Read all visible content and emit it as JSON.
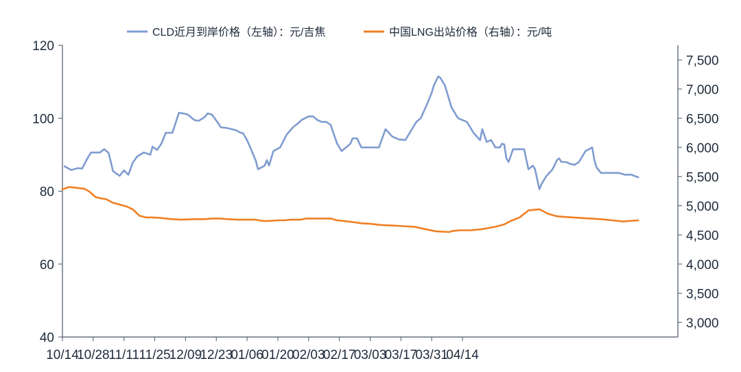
{
  "chart_data": {
    "type": "line",
    "legend_position": "top",
    "grid": false,
    "x_tick_labels": [
      "10/14",
      "10/28",
      "11/11",
      "11/25",
      "12/09",
      "12/23",
      "01/06",
      "01/20",
      "02/03",
      "02/17",
      "03/03",
      "03/17",
      "03/31",
      "04/14"
    ],
    "y_left": {
      "lim": [
        40,
        120
      ],
      "ticks": [
        "40",
        "60",
        "80",
        "100",
        "120"
      ]
    },
    "y_right": {
      "lim": [
        2750,
        7750
      ],
      "ticks": [
        "3,000",
        "3,500",
        "4,000",
        "4,500",
        "5,000",
        "5,500",
        "6,000",
        "6,500",
        "7,000",
        "7,500"
      ]
    },
    "colors": {
      "cld": "#7f9bd0",
      "lng": "#f07f23",
      "axis": "#4a5566"
    },
    "series": [
      {
        "name": "CLD近月到岸价格（左轴）：元/吉焦",
        "axis": "left",
        "x_days": [
          1,
          4,
          7,
          9,
          11,
          13,
          15,
          17,
          19,
          21,
          23,
          26,
          28,
          30,
          32,
          34,
          37,
          40,
          41,
          43,
          45,
          47,
          50,
          53,
          55,
          57,
          60,
          62,
          64,
          65,
          66,
          68,
          71,
          72,
          75,
          79,
          81,
          82,
          84,
          86,
          88,
          89,
          92,
          93,
          94,
          96,
          99,
          102,
          105,
          107,
          109,
          112,
          114,
          116,
          118,
          120,
          122,
          125,
          127,
          129,
          131,
          132,
          134,
          136,
          138,
          140,
          144,
          147,
          150,
          153,
          156,
          157,
          159,
          160,
          161,
          163,
          166,
          168,
          169,
          171,
          172,
          174,
          177,
          180,
          182,
          184,
          187,
          190,
          191,
          193,
          195,
          197,
          199,
          200,
          201,
          202,
          203,
          205,
          207,
          210,
          212,
          214,
          215,
          217,
          218,
          220,
          223,
          225,
          226,
          227,
          229,
          231,
          233,
          235,
          238,
          241,
          242,
          243,
          245,
          246,
          248,
          250,
          253,
          256,
          259,
          261,
          262
        ],
        "values": [
          86.8,
          85.8,
          86.3,
          86.2,
          88.6,
          90.6,
          90.6,
          90.6,
          91.5,
          90.5,
          85.5,
          84.2,
          85.7,
          84.5,
          87.8,
          89.5,
          90.6,
          90.0,
          92.2,
          91.3,
          93.0,
          96.0,
          96.0,
          101.5,
          101.3,
          101.0,
          99.5,
          99.3,
          100.0,
          100.5,
          101.3,
          101.0,
          98.5,
          97.5,
          97.3,
          96.7,
          96.0,
          96.0,
          94.0,
          91.2,
          88.3,
          86.0,
          87.0,
          88.5,
          87.0,
          91.0,
          92.0,
          95.5,
          97.6,
          98.5,
          99.6,
          100.5,
          100.5,
          99.5,
          99.0,
          99.0,
          98.2,
          93.0,
          91.0,
          92.0,
          93.0,
          94.5,
          94.5,
          92.0,
          92.0,
          92.0,
          92.0,
          97.0,
          95.0,
          94.2,
          94.0,
          95.0,
          97.0,
          98.0,
          99.0,
          100.0,
          104.0,
          107.0,
          109.0,
          111.5,
          111.0,
          109.0,
          103.0,
          100.0,
          99.5,
          99.0,
          96.0,
          94.0,
          97.0,
          93.5,
          94.0,
          92.0,
          92.0,
          93.0,
          92.8,
          89.0,
          88.0,
          91.5,
          91.5,
          91.5,
          86.0,
          87.0,
          86.0,
          80.5,
          82.0,
          84.0,
          86.0,
          88.5,
          89.0,
          88.0,
          88.0,
          87.5,
          87.2,
          88.0,
          91.0,
          92.0,
          88.5,
          86.5,
          85.0,
          85.0,
          85.0,
          85.0,
          85.0,
          84.5,
          84.5,
          84.0,
          83.8
        ]
      },
      {
        "name": "中国LNG出站价格（右轴）：元/吨",
        "axis": "right",
        "x_days": [
          0,
          3,
          6,
          10,
          12,
          15,
          17,
          20,
          23,
          26,
          29,
          32,
          35,
          38,
          41,
          45,
          47,
          50,
          54,
          60,
          65,
          68,
          72,
          75,
          80,
          84,
          88,
          91,
          94,
          98,
          101,
          104,
          108,
          111,
          114,
          118,
          122,
          125,
          128,
          132,
          136,
          140,
          145,
          150,
          155,
          160,
          165,
          170,
          176,
          178,
          181,
          186,
          191,
          194,
          197,
          201,
          204,
          208,
          212,
          217,
          221,
          225,
          228,
          232,
          236,
          240,
          245,
          250,
          255,
          262
        ],
        "values": [
          5280,
          5320,
          5310,
          5290,
          5250,
          5150,
          5130,
          5110,
          5050,
          5020,
          4990,
          4940,
          4830,
          4800,
          4800,
          4790,
          4780,
          4770,
          4760,
          4770,
          4770,
          4780,
          4780,
          4770,
          4760,
          4760,
          4760,
          4740,
          4740,
          4750,
          4750,
          4760,
          4760,
          4780,
          4780,
          4780,
          4780,
          4750,
          4740,
          4720,
          4700,
          4690,
          4670,
          4660,
          4650,
          4640,
          4600,
          4560,
          4550,
          4570,
          4580,
          4580,
          4600,
          4620,
          4640,
          4680,
          4740,
          4800,
          4920,
          4940,
          4860,
          4820,
          4810,
          4800,
          4790,
          4780,
          4770,
          4750,
          4730,
          4750
        ]
      }
    ]
  }
}
